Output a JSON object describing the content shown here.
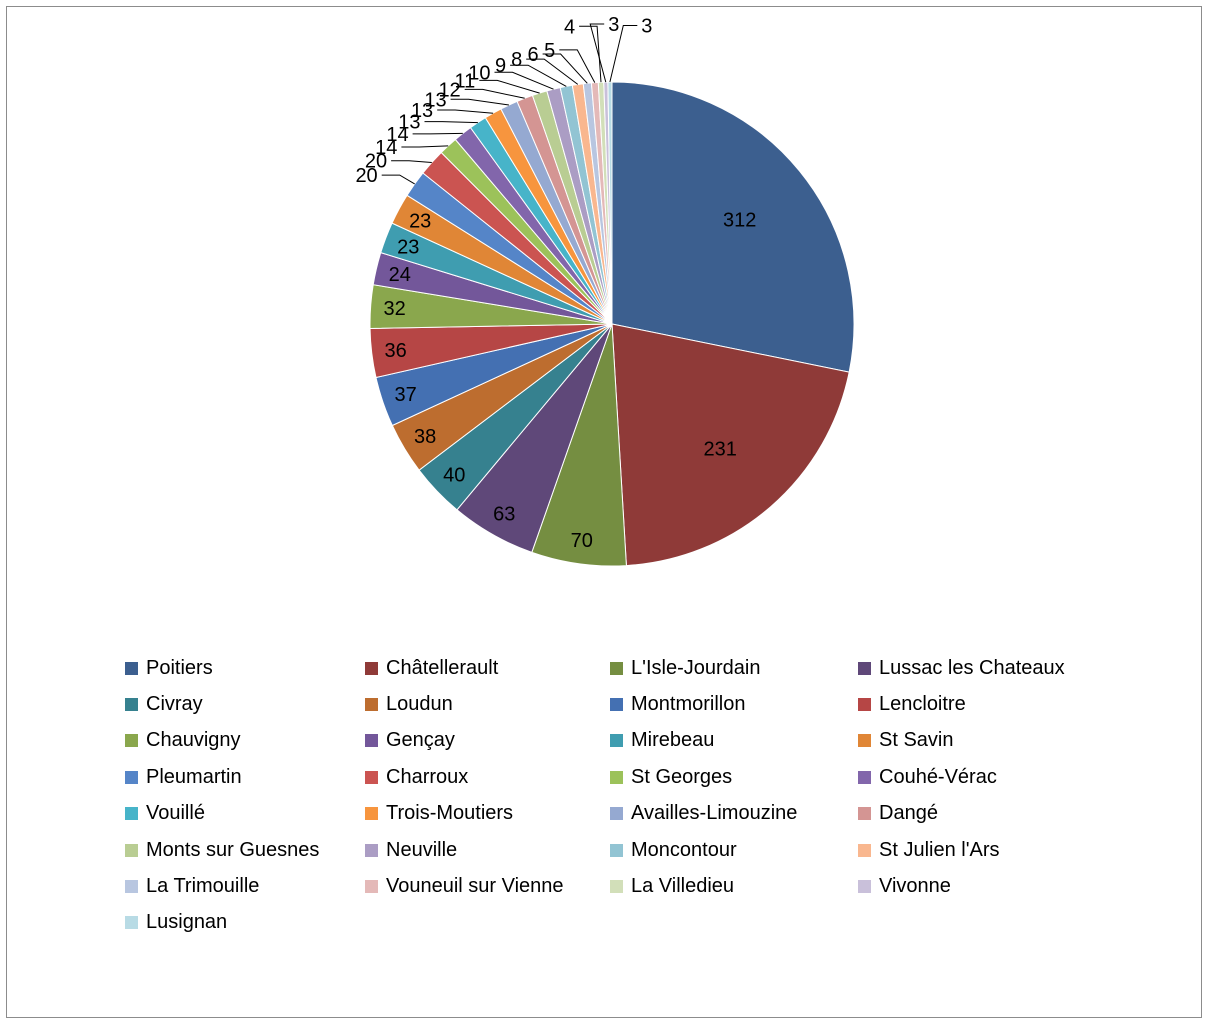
{
  "chart_data": {
    "type": "pie",
    "title": "",
    "start_angle_deg": 0,
    "direction": "clockwise",
    "legend_position": "bottom",
    "slices": [
      {
        "label": "Poitiers",
        "value": 312,
        "color": "#3c5f8f"
      },
      {
        "label": "Châtellerault",
        "value": 231,
        "color": "#8f3a38"
      },
      {
        "label": "L'Isle-Jourdain",
        "value": 70,
        "color": "#758e41"
      },
      {
        "label": "Lussac les Chateaux",
        "value": 63,
        "color": "#5f4879"
      },
      {
        "label": "Civray",
        "value": 40,
        "color": "#36818f"
      },
      {
        "label": "Loudun",
        "value": 38,
        "color": "#bd6d2f"
      },
      {
        "label": "Montmorillon",
        "value": 37,
        "color": "#4470b2"
      },
      {
        "label": "Lencloitre",
        "value": 36,
        "color": "#b64645"
      },
      {
        "label": "Chauvigny",
        "value": 32,
        "color": "#8aa74d"
      },
      {
        "label": "Gençay",
        "value": 24,
        "color": "#73579a"
      },
      {
        "label": "Mirebeau",
        "value": 23,
        "color": "#3f9db0"
      },
      {
        "label": "St Savin",
        "value": 23,
        "color": "#e08636"
      },
      {
        "label": "Pleumartin",
        "value": 20,
        "color": "#5585c8"
      },
      {
        "label": "Charroux",
        "value": 20,
        "color": "#cb5451"
      },
      {
        "label": "St Georges",
        "value": 14,
        "color": "#9cc25a"
      },
      {
        "label": "Couhé-Vérac",
        "value": 14,
        "color": "#8266ab"
      },
      {
        "label": "Vouillé",
        "value": 13,
        "color": "#47b4c9"
      },
      {
        "label": "Trois-Moutiers",
        "value": 13,
        "color": "#f7953e"
      },
      {
        "label": "Availles-Limouzine",
        "value": 13,
        "color": "#95a9d1"
      },
      {
        "label": "Dangé",
        "value": 12,
        "color": "#d49593"
      },
      {
        "label": "Monts sur Guesnes",
        "value": 11,
        "color": "#b9cd93"
      },
      {
        "label": "Neuville",
        "value": 10,
        "color": "#ab9dc4"
      },
      {
        "label": "Moncontour",
        "value": 9,
        "color": "#92c4d3"
      },
      {
        "label": "St Julien l'Ars",
        "value": 8,
        "color": "#f9b78f"
      },
      {
        "label": "La Trimouille",
        "value": 6,
        "color": "#b8c6e0"
      },
      {
        "label": "Vouneuil sur Vienne",
        "value": 5,
        "color": "#e4b9b8"
      },
      {
        "label": "La Villedieu",
        "value": 4,
        "color": "#d2dfb9"
      },
      {
        "label": "Vivonne",
        "value": 3,
        "color": "#c9c0da"
      },
      {
        "label": "Lusignan",
        "value": 3,
        "color": "#b8dbe5"
      }
    ]
  }
}
